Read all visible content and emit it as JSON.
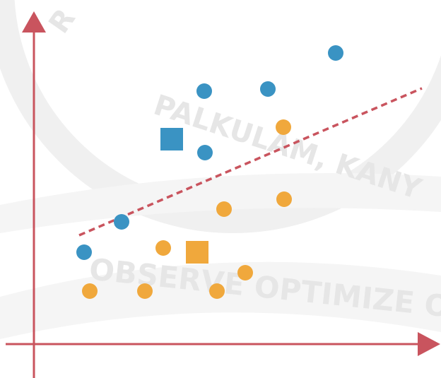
{
  "watermark": {
    "arc_text": "PALKULAM, KANY",
    "motto": "OBSERVE OPTIMIZE O",
    "letter": "R"
  }
}
